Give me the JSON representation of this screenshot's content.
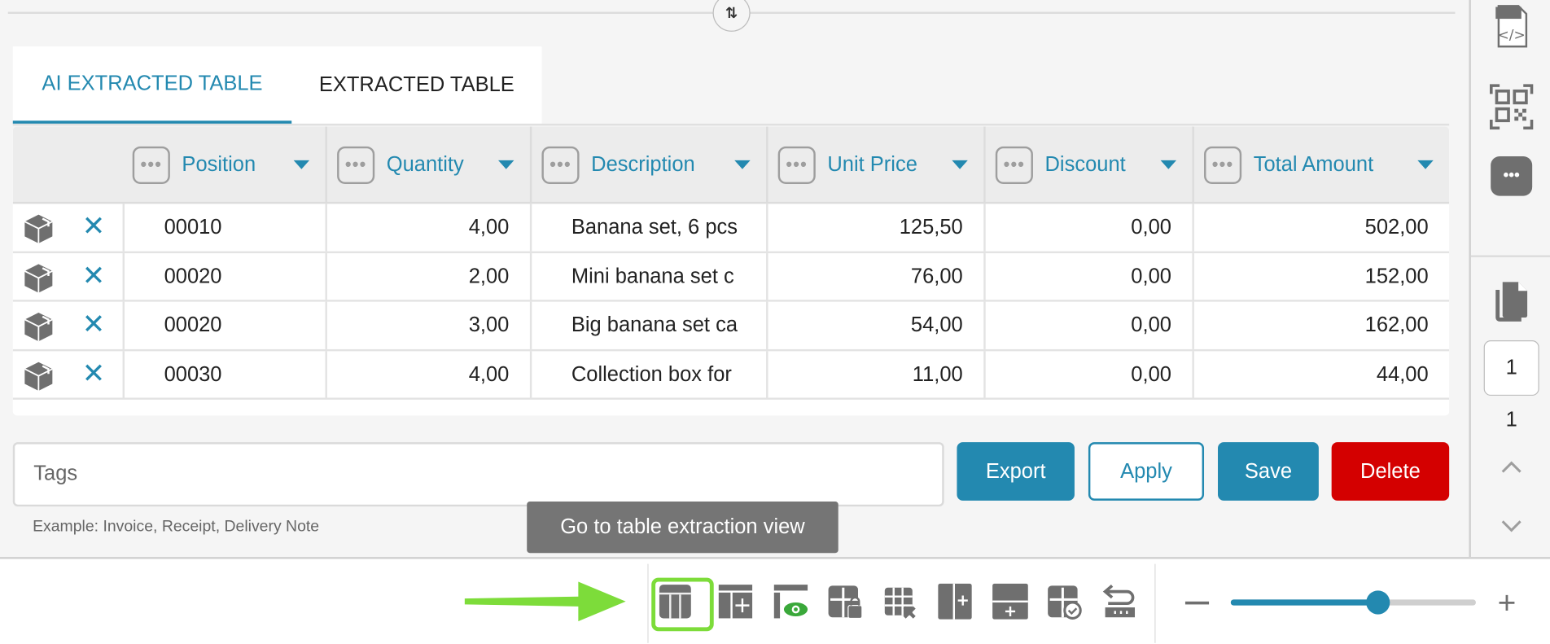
{
  "tabs": [
    {
      "label": "AI EXTRACTED TABLE",
      "active": true
    },
    {
      "label": "EXTRACTED TABLE",
      "active": false
    }
  ],
  "table": {
    "columns": [
      "Position",
      "Quantity",
      "Description",
      "Unit Price",
      "Discount",
      "Total Amount"
    ],
    "rows": [
      [
        "00010",
        "4,00",
        "Banana set, 6 pcs",
        "125,50",
        "0,00",
        "502,00"
      ],
      [
        "00020",
        "2,00",
        "Mini banana set c",
        "76,00",
        "0,00",
        "152,00"
      ],
      [
        "00020",
        "3,00",
        "Big banana set ca",
        "54,00",
        "0,00",
        "162,00"
      ],
      [
        "00030",
        "4,00",
        "Collection box for",
        "11,00",
        "0,00",
        "44,00"
      ]
    ]
  },
  "tags": {
    "placeholder": "Tags",
    "helper": "Example: Invoice, Receipt, Delivery Note"
  },
  "buttons": {
    "export": "Export",
    "apply": "Apply",
    "save": "Save",
    "delete": "Delete"
  },
  "tooltip": "Go to table extraction view",
  "sidebar": {
    "page_input": "1",
    "page_count": "1"
  },
  "zoom": {
    "level": 0.6
  },
  "colors": {
    "accent": "#2389b0",
    "delete": "#d40000",
    "highlight": "#7ddc3a",
    "icon": "#6f6f6f"
  },
  "toolbar_icons": [
    "table-view-icon",
    "add-table-icon",
    "preview-table-icon",
    "lock-table-icon",
    "delete-table-icon",
    "add-column-icon",
    "add-row-icon",
    "validate-table-icon",
    "reset-table-icon"
  ]
}
